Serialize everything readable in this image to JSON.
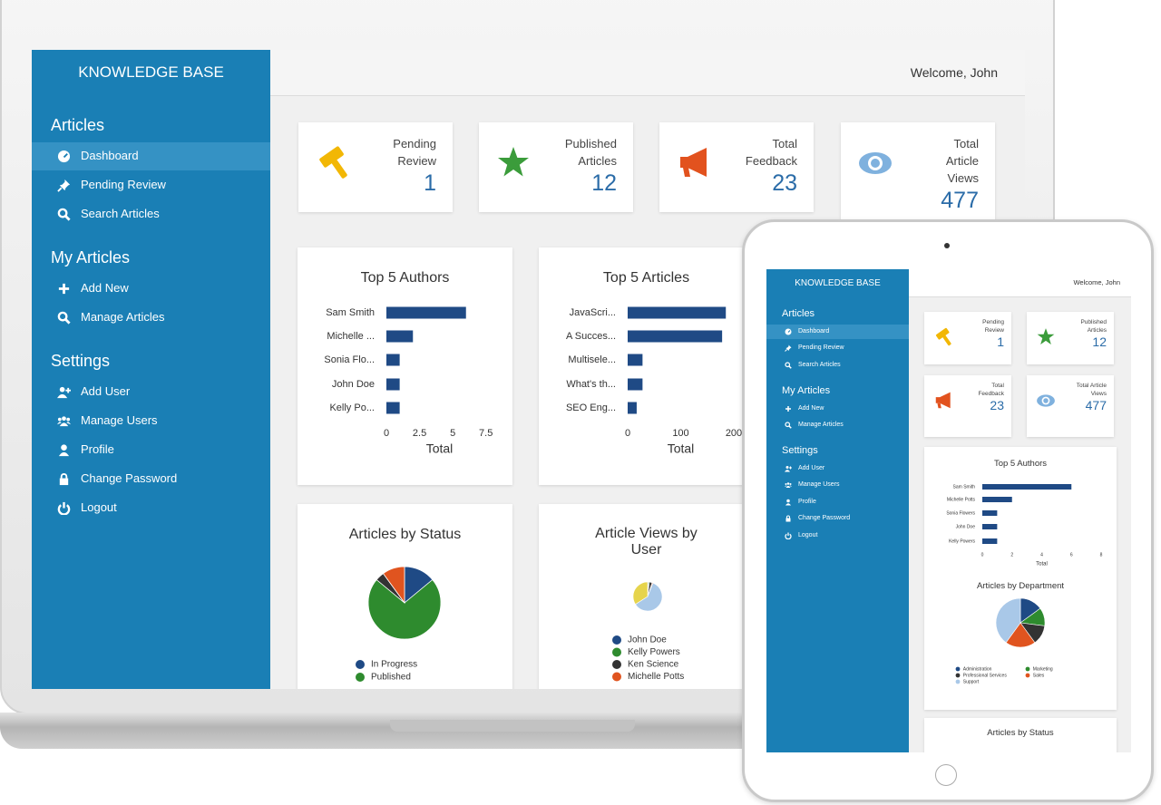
{
  "laptop": {
    "sidebar": {
      "title": "KNOWLEDGE BASE",
      "sections": [
        {
          "heading": "Articles",
          "items": [
            "Dashboard",
            "Pending Review",
            "Search Articles"
          ]
        },
        {
          "heading": "My Articles",
          "items": [
            "Add New",
            "Manage Articles"
          ]
        },
        {
          "heading": "Settings",
          "items": [
            "Add User",
            "Manage Users",
            "Profile",
            "Change Password",
            "Logout"
          ]
        }
      ]
    },
    "header": {
      "welcome": "Welcome, John"
    },
    "stats": [
      {
        "label": "Pending Review",
        "value": 1
      },
      {
        "label": "Published Articles",
        "value": 12
      },
      {
        "label": "Total Feedback",
        "value": 23
      },
      {
        "label": "Total Article Views",
        "value": 477
      }
    ]
  },
  "tablet": {
    "sidebar": {
      "title": "KNOWLEDGE BASE",
      "sections": [
        {
          "heading": "Articles",
          "items": [
            "Dashboard",
            "Pending Review",
            "Search Articles"
          ]
        },
        {
          "heading": "My Articles",
          "items": [
            "Add New",
            "Manage Articles"
          ]
        },
        {
          "heading": "Settings",
          "items": [
            "Add User",
            "Manage Users",
            "Profile",
            "Change Password",
            "Logout"
          ]
        }
      ]
    },
    "header": {
      "welcome": "Welcome, John"
    },
    "stats": [
      {
        "label": "Pending Review",
        "value": 1
      },
      {
        "label": "Published Articles",
        "value": 12
      },
      {
        "label": "Total Feedback",
        "value": 23
      },
      {
        "label": "Total Article Views",
        "value": 477
      }
    ]
  },
  "chart_data": [
    {
      "type": "bar",
      "orientation": "horizontal",
      "title": "Top 5 Authors",
      "categories": [
        "Sam Smith",
        "Michelle ...",
        "Sonia Flo...",
        "John Doe",
        "Kelly Po..."
      ],
      "values": [
        6,
        2,
        1,
        1,
        1
      ],
      "color": "#1f4a85",
      "xlim": [
        0,
        8
      ],
      "xticks": [
        0,
        2.5,
        5,
        7.5
      ],
      "xlabel": "Total"
    },
    {
      "type": "bar",
      "orientation": "horizontal",
      "title": "Top 5 Articles",
      "categories": [
        "JavaScri...",
        "A Succes...",
        "Multisele...",
        "What's th...",
        "SEO Eng..."
      ],
      "values": [
        185,
        178,
        28,
        28,
        17
      ],
      "color": "#1f4a85",
      "xlim": [
        0,
        200
      ],
      "xticks": [
        0,
        100,
        200
      ],
      "xlabel": "Total"
    },
    {
      "type": "pie",
      "title": "Articles by Status",
      "categories": [
        "In Progress",
        "Published",
        null,
        null
      ],
      "values": [
        14,
        72,
        4,
        10
      ],
      "colors": [
        "#1f4a85",
        "#2e8b2e",
        "#333333",
        "#e0541f"
      ]
    },
    {
      "type": "pie",
      "title": "Article Views by User",
      "categories": [
        "John Doe",
        "Kelly Powers",
        "Ken Science",
        "Michelle Potts",
        null,
        null
      ],
      "values": [
        1,
        1,
        3,
        1,
        60,
        34
      ],
      "colors": [
        "#1f4a85",
        "#2e8b2e",
        "#333333",
        "#e0541f",
        "#a9c8e8",
        "#e6d44c"
      ]
    },
    {
      "type": "bar",
      "orientation": "horizontal",
      "title": "Top 5 Authors",
      "categories": [
        "Sam Smith",
        "Michelle Potts",
        "Sonia Flowers",
        "John Doe",
        "Kelly Powers"
      ],
      "values": [
        6,
        2,
        1,
        1,
        1
      ],
      "color": "#1f4a85",
      "xlim": [
        0,
        8
      ],
      "xticks": [
        0,
        2,
        4,
        6,
        8
      ],
      "xlabel": "Total"
    },
    {
      "type": "pie",
      "title": "Articles by Department",
      "categories": [
        "Administration",
        "Marketing",
        "Professional Services",
        "Sales",
        "Support"
      ],
      "values": [
        15,
        12,
        13,
        20,
        40
      ],
      "colors": [
        "#1f4a85",
        "#2e8b2e",
        "#333333",
        "#e0541f",
        "#a9c8e8"
      ],
      "legend_columns": 2
    },
    {
      "type": "pie",
      "title": "Articles by Status"
    }
  ]
}
